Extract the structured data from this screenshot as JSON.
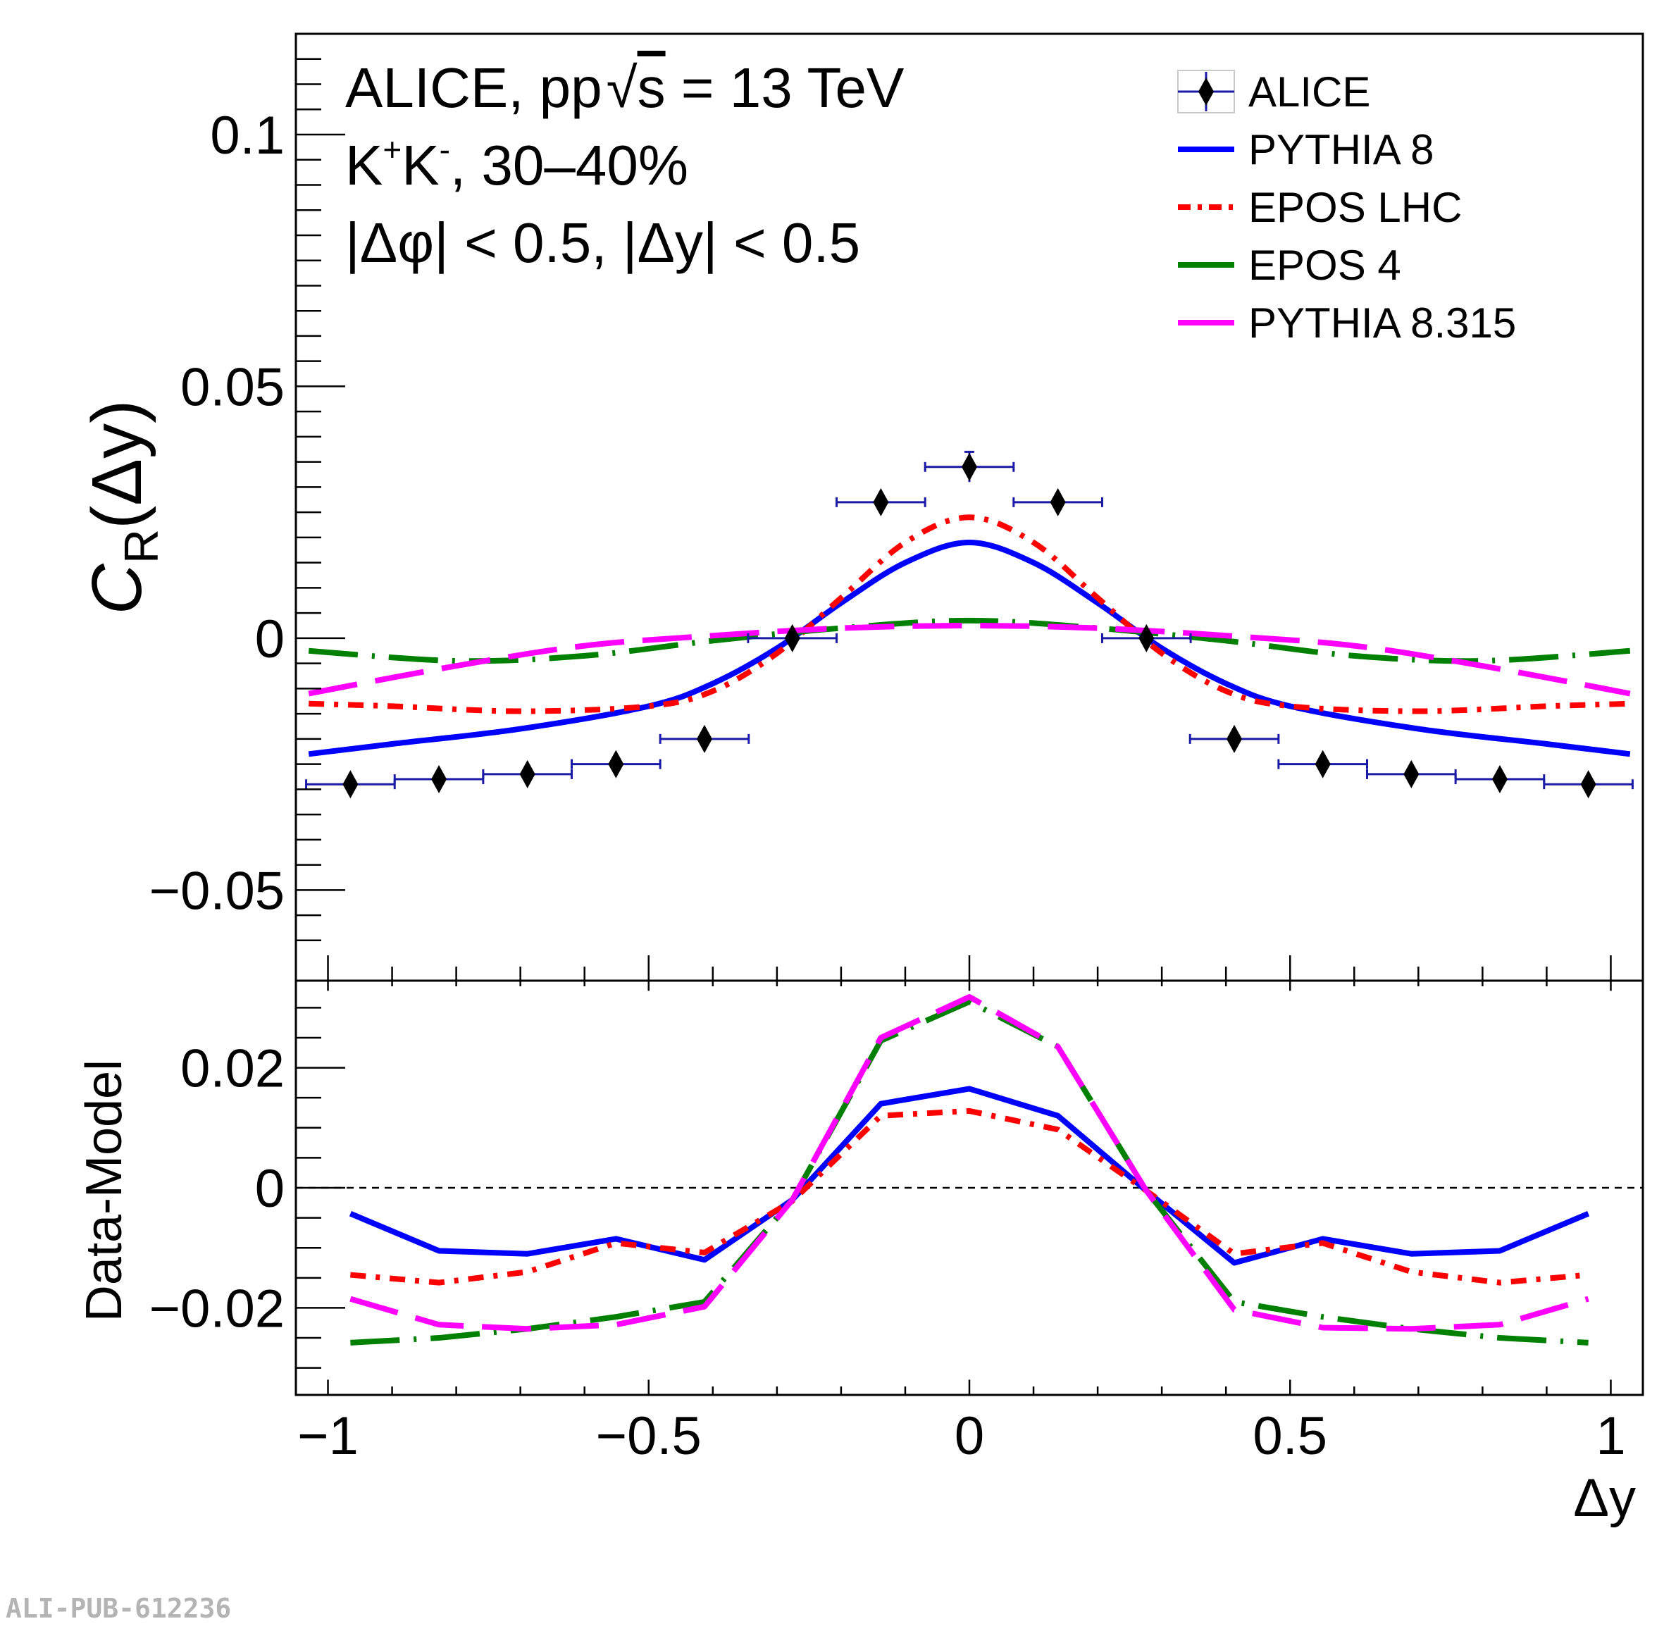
{
  "annotations": {
    "line1": "ALICE, pp",
    "line1_sqrt": "s",
    "line1_tail": " = 13 TeV",
    "line2_k": "K",
    "line2_plus": "+",
    "line2_minus": "-",
    "line2_tail": ", 30–40%",
    "line3": "|Δφ| < 0.5, |Δy| < 0.5"
  },
  "watermark": "ALI-PUB-612236",
  "colors": {
    "data": "#000000",
    "data_err": "#1a1aa6",
    "pythia8": "#0000ff",
    "epos_lhc": "#ff0000",
    "epos4": "#008000",
    "pythia8315": "#ff00ff"
  },
  "chart_data": [
    {
      "type": "line",
      "panel": "upper",
      "ylabel": "C",
      "ylabel_sub": "R",
      "ylabel_arg": "(Δy)",
      "xlim": [
        -1.05,
        1.05
      ],
      "ylim": [
        -0.068,
        0.12
      ],
      "yticks": [
        -0.05,
        0,
        0.05,
        0.1
      ],
      "ytick_labels": [
        "−0.05",
        "0",
        "0.05",
        "0.1"
      ],
      "legend": [
        "ALICE",
        "PYTHIA 8",
        "EPOS LHC",
        "EPOS 4",
        "PYTHIA 8.315"
      ],
      "legend_position": "top-right",
      "data_points": {
        "name": "ALICE",
        "x": [
          -0.965,
          -0.827,
          -0.689,
          -0.551,
          -0.413,
          -0.276,
          -0.138,
          0.0,
          0.138,
          0.276,
          0.413,
          0.551,
          0.689,
          0.827,
          0.965
        ],
        "y": [
          -0.029,
          -0.028,
          -0.027,
          -0.025,
          -0.02,
          0.0,
          0.027,
          0.034,
          0.027,
          0.0,
          -0.02,
          -0.025,
          -0.027,
          -0.028,
          -0.029
        ],
        "xerr": 0.069,
        "yerr": [
          0.0006,
          0.0006,
          0.0006,
          0.0006,
          0.0006,
          0.0006,
          0.0008,
          0.003,
          0.0008,
          0.0006,
          0.0006,
          0.0006,
          0.0006,
          0.0006,
          0.0006
        ]
      },
      "series": [
        {
          "name": "PYTHIA 8",
          "x": [
            -1.03,
            -0.9,
            -0.7,
            -0.5,
            -0.4,
            -0.3,
            -0.2,
            -0.1,
            0.0,
            0.1,
            0.2,
            0.3,
            0.4,
            0.5,
            0.7,
            0.9,
            1.03
          ],
          "y": [
            -0.023,
            -0.021,
            -0.018,
            -0.0135,
            -0.009,
            -0.002,
            0.007,
            0.015,
            0.019,
            0.015,
            0.007,
            -0.002,
            -0.009,
            -0.0135,
            -0.018,
            -0.021,
            -0.023
          ]
        },
        {
          "name": "EPOS LHC",
          "x": [
            -1.03,
            -0.9,
            -0.7,
            -0.5,
            -0.4,
            -0.3,
            -0.2,
            -0.1,
            0.0,
            0.1,
            0.2,
            0.3,
            0.4,
            0.5,
            0.7,
            0.9,
            1.03
          ],
          "y": [
            -0.013,
            -0.0135,
            -0.0145,
            -0.0135,
            -0.0105,
            -0.003,
            0.008,
            0.019,
            0.024,
            0.019,
            0.008,
            -0.003,
            -0.0105,
            -0.0135,
            -0.0145,
            -0.0135,
            -0.013
          ]
        },
        {
          "name": "EPOS 4",
          "x": [
            -1.03,
            -0.8,
            -0.6,
            -0.4,
            -0.2,
            0.0,
            0.2,
            0.4,
            0.6,
            0.8,
            1.03
          ],
          "y": [
            -0.0025,
            -0.0045,
            -0.0035,
            -0.0005,
            0.002,
            0.0035,
            0.002,
            -0.0005,
            -0.0035,
            -0.0045,
            -0.0025
          ]
        },
        {
          "name": "PYTHIA 8.315",
          "x": [
            -1.03,
            -0.8,
            -0.6,
            -0.4,
            -0.2,
            0.0,
            0.2,
            0.4,
            0.6,
            0.8,
            1.03
          ],
          "y": [
            -0.011,
            -0.0055,
            -0.0015,
            0.0005,
            0.002,
            0.0025,
            0.002,
            0.0005,
            -0.0015,
            -0.0055,
            -0.011
          ]
        }
      ]
    },
    {
      "type": "line",
      "panel": "lower",
      "xlabel": "Δy",
      "ylabel": "Data-Model",
      "xlim": [
        -1.05,
        1.05
      ],
      "ylim": [
        -0.0345,
        0.0345
      ],
      "xticks": [
        -1,
        -0.5,
        0,
        0.5,
        1
      ],
      "xtick_labels": [
        "−1",
        "−0.5",
        "0",
        "0.5",
        "1"
      ],
      "yticks": [
        -0.02,
        0,
        0.02
      ],
      "ytick_labels": [
        "−0.02",
        "0",
        "0.02"
      ],
      "reference_line": 0,
      "x": [
        -0.965,
        -0.827,
        -0.689,
        -0.551,
        -0.413,
        -0.276,
        -0.138,
        0.0,
        0.138,
        0.276,
        0.413,
        0.551,
        0.689,
        0.827,
        0.965
      ],
      "series": [
        {
          "name": "PYTHIA 8",
          "y": [
            -0.0043,
            -0.0105,
            -0.011,
            -0.0085,
            -0.012,
            -0.002,
            0.014,
            0.0165,
            0.012,
            -0.0005,
            -0.0125,
            -0.0085,
            -0.011,
            -0.0105,
            -0.0043
          ]
        },
        {
          "name": "EPOS LHC",
          "y": [
            -0.0145,
            -0.0158,
            -0.014,
            -0.0092,
            -0.0108,
            -0.0022,
            0.012,
            0.0128,
            0.0097,
            -0.0005,
            -0.011,
            -0.0092,
            -0.014,
            -0.0158,
            -0.0145
          ]
        },
        {
          "name": "EPOS 4",
          "y": [
            -0.0258,
            -0.025,
            -0.0235,
            -0.0215,
            -0.019,
            -0.002,
            0.0245,
            0.031,
            0.0235,
            -0.0005,
            -0.019,
            -0.0215,
            -0.0235,
            -0.025,
            -0.0258
          ]
        },
        {
          "name": "PYTHIA 8.315",
          "y": [
            -0.0185,
            -0.0228,
            -0.0235,
            -0.0228,
            -0.0198,
            -0.002,
            0.025,
            0.0318,
            0.0235,
            -0.0005,
            -0.0203,
            -0.0233,
            -0.0235,
            -0.0228,
            -0.0185
          ]
        }
      ]
    }
  ]
}
